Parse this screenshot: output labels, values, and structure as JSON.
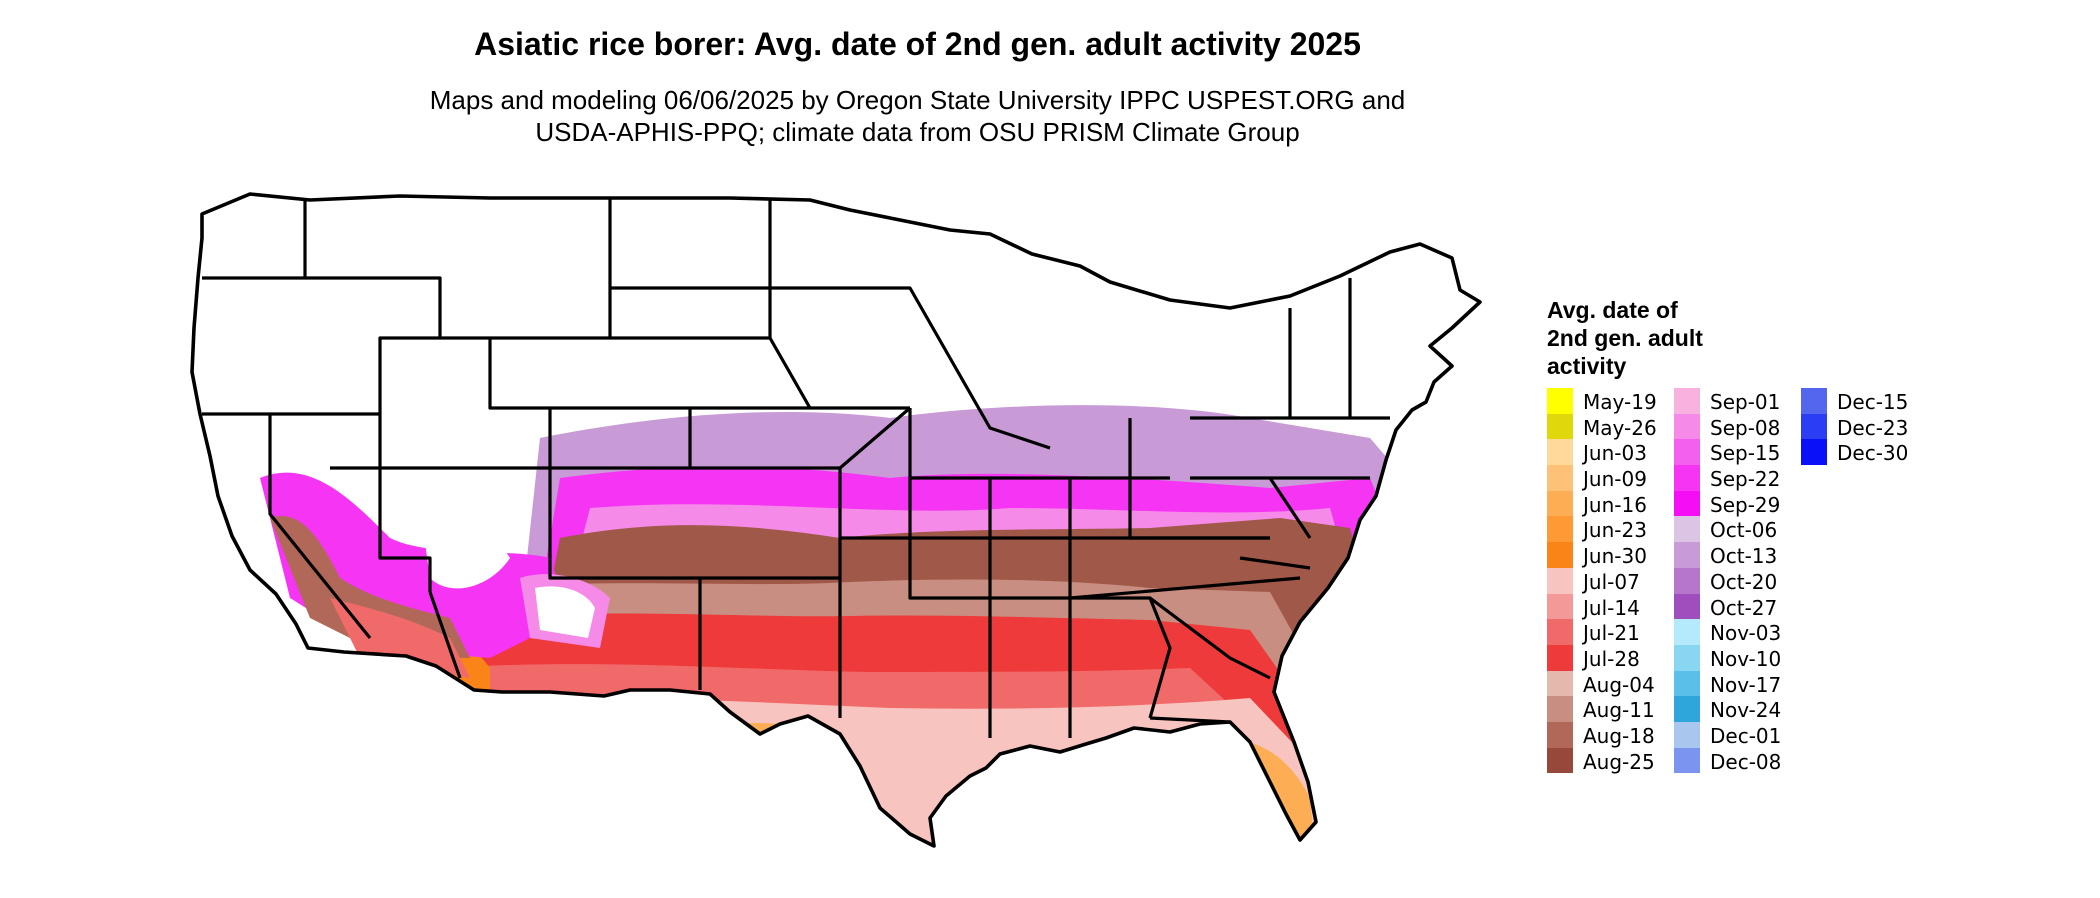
{
  "title": "Asiatic rice borer: Avg. date of 2nd gen. adult activity 2025",
  "subtitle_lines": [
    "Maps and modeling 06/06/2025 by Oregon State University IPPC USPEST.ORG and",
    "USDA-APHIS-PPQ; climate data from OSU PRISM Climate Group"
  ],
  "legend": {
    "title_lines": [
      "Avg. date of",
      "2nd gen. adult",
      "activity"
    ],
    "columns": [
      [
        {
          "label": "May-19",
          "color": "#ffff00"
        },
        {
          "label": "May-26",
          "color": "#e0d80a"
        },
        {
          "label": "Jun-03",
          "color": "#fed99b"
        },
        {
          "label": "Jun-09",
          "color": "#fdc277"
        },
        {
          "label": "Jun-16",
          "color": "#fdae55"
        },
        {
          "label": "Jun-23",
          "color": "#fd9a35"
        },
        {
          "label": "Jun-30",
          "color": "#fb8419"
        },
        {
          "label": "Jul-07",
          "color": "#f8c4c0"
        },
        {
          "label": "Jul-14",
          "color": "#f39a99"
        },
        {
          "label": "Jul-21",
          "color": "#f06a6a"
        },
        {
          "label": "Jul-28",
          "color": "#ee3a3a"
        },
        {
          "label": "Aug-04",
          "color": "#e4b9ad"
        },
        {
          "label": "Aug-11",
          "color": "#c98e82"
        },
        {
          "label": "Aug-18",
          "color": "#b26858"
        },
        {
          "label": "Aug-25",
          "color": "#96483a"
        }
      ],
      [
        {
          "label": "Sep-01",
          "color": "#f8b2e0"
        },
        {
          "label": "Sep-08",
          "color": "#f68ae8"
        },
        {
          "label": "Sep-15",
          "color": "#f460ee"
        },
        {
          "label": "Sep-22",
          "color": "#f535f3"
        },
        {
          "label": "Sep-29",
          "color": "#f50df5"
        },
        {
          "label": "Oct-06",
          "color": "#dcc4e4"
        },
        {
          "label": "Oct-13",
          "color": "#c89ad6"
        },
        {
          "label": "Oct-20",
          "color": "#b576cc"
        },
        {
          "label": "Oct-27",
          "color": "#a04dbe"
        },
        {
          "label": "Nov-03",
          "color": "#b4eafc"
        },
        {
          "label": "Nov-10",
          "color": "#88d6f2"
        },
        {
          "label": "Nov-17",
          "color": "#5ac0ea"
        },
        {
          "label": "Nov-24",
          "color": "#2ea6dc"
        },
        {
          "label": "Dec-01",
          "color": "#a8c6ee"
        },
        {
          "label": "Dec-08",
          "color": "#7a94f0"
        }
      ],
      [
        {
          "label": "Dec-15",
          "color": "#5466ee"
        },
        {
          "label": "Dec-23",
          "color": "#2c3ef4"
        },
        {
          "label": "Dec-30",
          "color": "#0a10f8"
        }
      ]
    ]
  }
}
